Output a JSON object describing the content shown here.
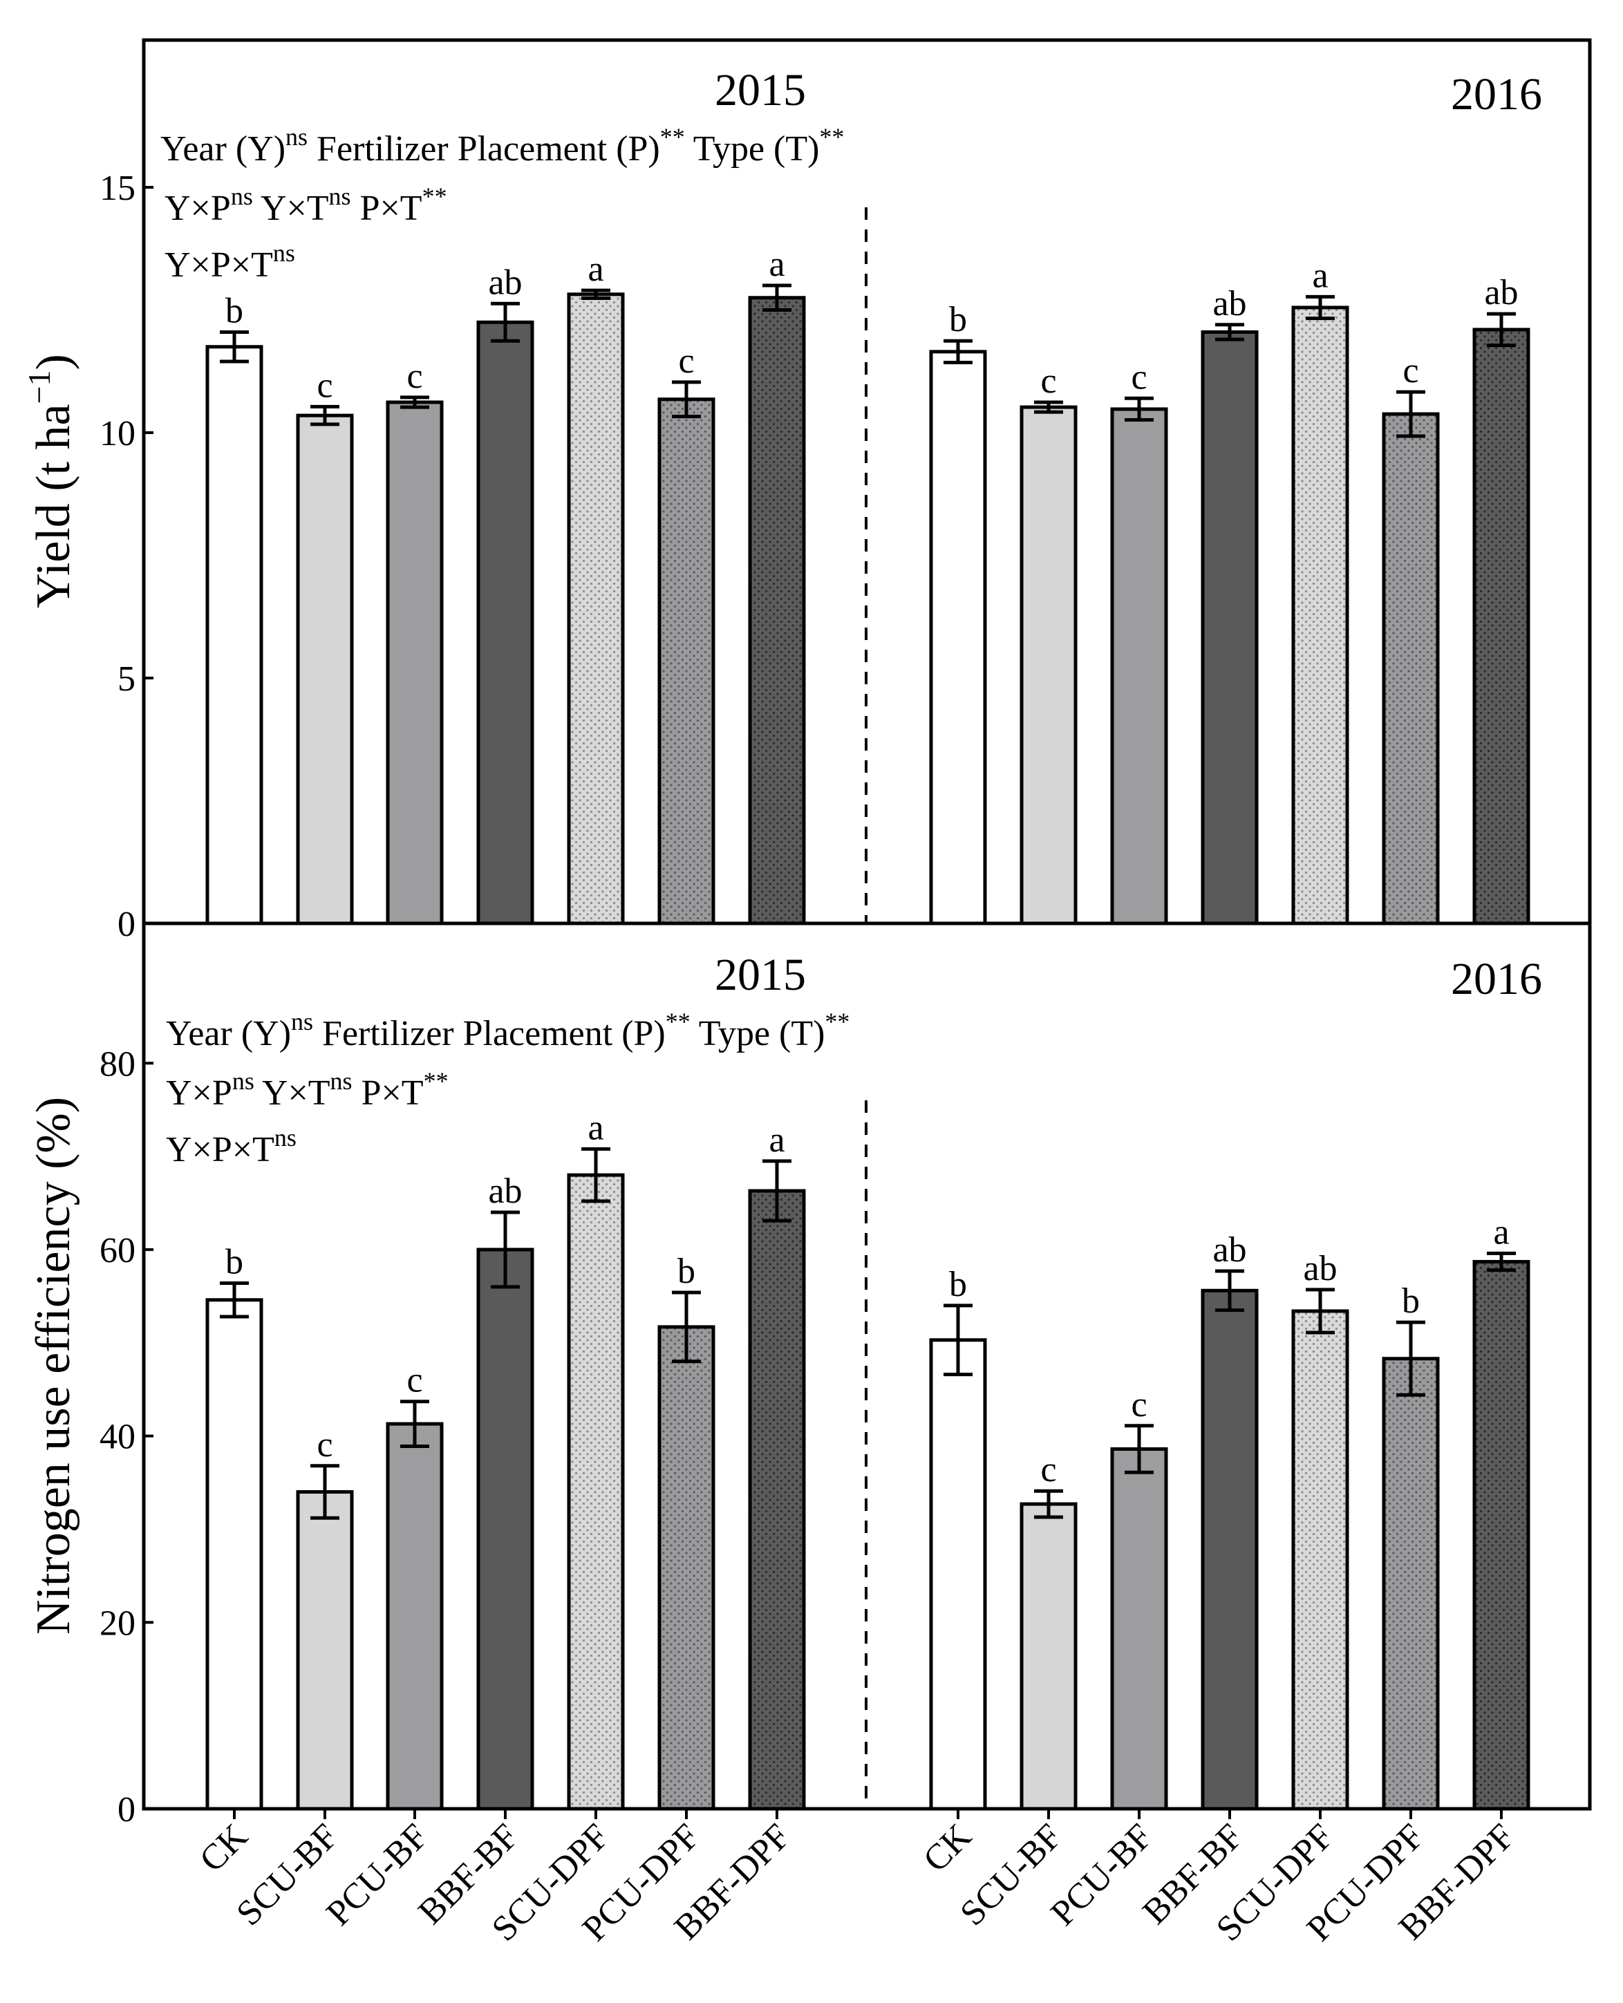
{
  "colors": {
    "white": "#ffffff",
    "light": "#d6d6d6",
    "mid": "#9d9c9f",
    "dark": "#5a5a5a",
    "dotted_light": "#d9d9d9",
    "dotted_mid": "#9a999c",
    "dotted_dark": "#5c5c5c"
  },
  "chart_data": [
    {
      "type": "bar",
      "panel": "top",
      "ylabel": "Yield",
      "ylabel_unit_base": "t ha",
      "ylabel_unit_exp": "−1",
      "ylim": [
        0,
        18
      ],
      "yticks": [
        0,
        5,
        10,
        15
      ],
      "year_labels": [
        "2015",
        "2016"
      ],
      "stats": {
        "l1": {
          "a": "Year (Y)",
          "a_sup": "ns",
          "b": " Fertilizer Placement (P)",
          "b_sup": "**",
          "c": " Type (T)",
          "c_sup": "**"
        },
        "l2": {
          "a": "Y×P",
          "a_sup": "ns",
          "b": " Y×T",
          "b_sup": "ns",
          "c": " P×T",
          "c_sup": "**"
        },
        "l3": {
          "a": "Y×P×T",
          "a_sup": "ns"
        }
      },
      "series": [
        {
          "year": "2015",
          "values": [
            11.75,
            10.35,
            10.62,
            12.25,
            12.82,
            10.68,
            12.75
          ],
          "errors": [
            0.3,
            0.18,
            0.1,
            0.38,
            0.08,
            0.35,
            0.25
          ],
          "letters": [
            "b",
            "c",
            "c",
            "ab",
            "a",
            "c",
            "a"
          ]
        },
        {
          "year": "2016",
          "values": [
            11.65,
            10.52,
            10.48,
            12.05,
            12.55,
            10.38,
            12.1
          ],
          "errors": [
            0.22,
            0.1,
            0.22,
            0.15,
            0.22,
            0.45,
            0.32
          ],
          "letters": [
            "b",
            "c",
            "c",
            "ab",
            "a",
            "c",
            "ab"
          ]
        }
      ]
    },
    {
      "type": "bar",
      "panel": "bottom",
      "ylabel": "Nitrogen use efficiency (%)",
      "ylim": [
        0,
        95
      ],
      "yticks": [
        0,
        20,
        40,
        60,
        80
      ],
      "year_labels": [
        "2015",
        "2016"
      ],
      "stats": {
        "l1": {
          "a": "Year (Y)",
          "a_sup": "ns",
          "b": " Fertilizer Placement (P)",
          "b_sup": "**",
          "c": " Type (T)",
          "c_sup": "**"
        },
        "l2": {
          "a": "Y×P",
          "a_sup": "ns",
          "b": " Y×T",
          "b_sup": "ns",
          "c": " P×T",
          "c_sup": "**"
        },
        "l3": {
          "a": "Y×P×T",
          "a_sup": "ns"
        }
      },
      "categories": [
        "CK",
        "SCU-BF",
        "PCU-BF",
        "BBF-BF",
        "SCU-DPF",
        "PCU-DPF",
        "BBF-DPF"
      ],
      "series": [
        {
          "year": "2015",
          "values": [
            54.6,
            34,
            41.3,
            60,
            68,
            51.7,
            66.3
          ],
          "errors": [
            1.8,
            2.8,
            2.4,
            4,
            2.8,
            3.7,
            3.2
          ],
          "letters": [
            "b",
            "c",
            "c",
            "ab",
            "a",
            "b",
            "a"
          ]
        },
        {
          "year": "2016",
          "values": [
            50.3,
            32.7,
            38.6,
            55.6,
            53.4,
            48.3,
            58.7
          ],
          "errors": [
            3.7,
            1.4,
            2.5,
            2.1,
            2.3,
            3.9,
            0.9
          ],
          "letters": [
            "b",
            "c",
            "c",
            "ab",
            "ab",
            "b",
            "a"
          ]
        }
      ]
    }
  ]
}
